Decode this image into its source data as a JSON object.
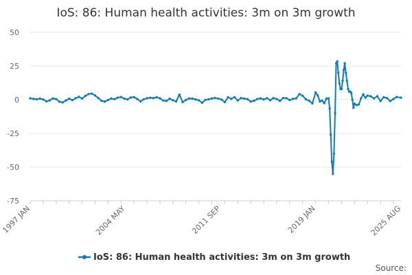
{
  "chart_data": {
    "type": "line",
    "title": "IoS: 86: Human health activities: 3m on 3m growth",
    "xlabel": "",
    "ylabel": "",
    "x_tick_labels": [
      "1997 JAN",
      "2004 MAY",
      "2011 SEP",
      "2019 JAN",
      "2025 AUG"
    ],
    "y_ticks": [
      50,
      25,
      0,
      -25,
      -50,
      -75
    ],
    "ylim": [
      -75,
      50
    ],
    "grid": true,
    "legend_position": "bottom",
    "series": [
      {
        "name": "IoS: 86: Human health activities: 3m on 3m growth",
        "color": "#0e7bb8",
        "points": [
          [
            "1997-01",
            1.0
          ],
          [
            "1997-04",
            0.6
          ],
          [
            "1997-07",
            0.3
          ],
          [
            "1997-10",
            0.8
          ],
          [
            "1998-01",
            0.2
          ],
          [
            "1998-04",
            -1.2
          ],
          [
            "1998-07",
            -0.5
          ],
          [
            "1998-10",
            0.9
          ],
          [
            "1999-01",
            0.4
          ],
          [
            "1999-04",
            -1.5
          ],
          [
            "1999-07",
            -2.0
          ],
          [
            "1999-10",
            -0.6
          ],
          [
            "2000-01",
            0.7
          ],
          [
            "2000-04",
            -0.3
          ],
          [
            "2000-07",
            1.1
          ],
          [
            "2000-10",
            2.1
          ],
          [
            "2001-01",
            0.9
          ],
          [
            "2001-04",
            2.8
          ],
          [
            "2001-07",
            4.2
          ],
          [
            "2001-10",
            4.5
          ],
          [
            "2002-01",
            3.1
          ],
          [
            "2002-04",
            1.2
          ],
          [
            "2002-07",
            -0.8
          ],
          [
            "2002-10",
            -1.4
          ],
          [
            "2003-01",
            -0.2
          ],
          [
            "2003-04",
            0.9
          ],
          [
            "2003-07",
            0.4
          ],
          [
            "2003-10",
            1.5
          ],
          [
            "2004-01",
            2.0
          ],
          [
            "2004-04",
            0.8
          ],
          [
            "2004-07",
            0.2
          ],
          [
            "2004-10",
            1.6
          ],
          [
            "2005-01",
            1.9
          ],
          [
            "2005-04",
            0.5
          ],
          [
            "2005-07",
            -1.2
          ],
          [
            "2005-10",
            0.3
          ],
          [
            "2006-01",
            1.1
          ],
          [
            "2006-04",
            1.4
          ],
          [
            "2006-07",
            1.2
          ],
          [
            "2006-10",
            1.8
          ],
          [
            "2007-01",
            1.0
          ],
          [
            "2007-04",
            -0.6
          ],
          [
            "2007-07",
            -0.9
          ],
          [
            "2007-10",
            0.7
          ],
          [
            "2008-01",
            -0.4
          ],
          [
            "2008-04",
            -1.3
          ],
          [
            "2008-07",
            3.8
          ],
          [
            "2008-10",
            -1.8
          ],
          [
            "2009-01",
            -0.2
          ],
          [
            "2009-04",
            0.9
          ],
          [
            "2009-07",
            0.8
          ],
          [
            "2009-10",
            0.2
          ],
          [
            "2010-01",
            -0.5
          ],
          [
            "2010-04",
            -2.3
          ],
          [
            "2010-07",
            -0.1
          ],
          [
            "2010-10",
            0.3
          ],
          [
            "2011-01",
            0.9
          ],
          [
            "2011-04",
            1.3
          ],
          [
            "2011-07",
            0.8
          ],
          [
            "2011-10",
            0.1
          ],
          [
            "2012-01",
            -1.8
          ],
          [
            "2012-04",
            1.8
          ],
          [
            "2012-07",
            0.6
          ],
          [
            "2012-10",
            1.9
          ],
          [
            "2013-01",
            -0.6
          ],
          [
            "2013-04",
            1.2
          ],
          [
            "2013-07",
            0.8
          ],
          [
            "2013-10",
            0.4
          ],
          [
            "2014-01",
            -1.4
          ],
          [
            "2014-04",
            -0.8
          ],
          [
            "2014-07",
            0.5
          ],
          [
            "2014-10",
            1.0
          ],
          [
            "2015-01",
            0.2
          ],
          [
            "2015-04",
            1.1
          ],
          [
            "2015-07",
            -0.3
          ],
          [
            "2015-10",
            1.2
          ],
          [
            "2016-01",
            0.5
          ],
          [
            "2016-04",
            -0.9
          ],
          [
            "2016-07",
            1.3
          ],
          [
            "2016-10",
            1.1
          ],
          [
            "2017-01",
            -0.2
          ],
          [
            "2017-04",
            0.6
          ],
          [
            "2017-07",
            1.0
          ],
          [
            "2017-10",
            4.2
          ],
          [
            "2018-01",
            2.9
          ],
          [
            "2018-04",
            0.3
          ],
          [
            "2018-07",
            -0.8
          ],
          [
            "2018-10",
            -2.8
          ],
          [
            "2019-01",
            5.4
          ],
          [
            "2019-03",
            3.1
          ],
          [
            "2019-05",
            -1.4
          ],
          [
            "2019-07",
            -0.6
          ],
          [
            "2019-09",
            -2.6
          ],
          [
            "2019-11",
            0.8
          ],
          [
            "2020-01",
            1.0
          ],
          [
            "2020-02",
            -6.5
          ],
          [
            "2020-03",
            -26.0
          ],
          [
            "2020-04",
            -46.0
          ],
          [
            "2020-05",
            -55.0
          ],
          [
            "2020-06",
            -40.0
          ],
          [
            "2020-07",
            -10.0
          ],
          [
            "2020-08",
            27.0
          ],
          [
            "2020-09",
            28.5
          ],
          [
            "2020-10",
            20.0
          ],
          [
            "2020-11",
            12.0
          ],
          [
            "2020-12",
            8.0
          ],
          [
            "2021-01",
            8.0
          ],
          [
            "2021-02",
            14.0
          ],
          [
            "2021-03",
            22.0
          ],
          [
            "2021-04",
            27.0
          ],
          [
            "2021-05",
            20.0
          ],
          [
            "2021-06",
            14.0
          ],
          [
            "2021-07",
            8.0
          ],
          [
            "2021-08",
            6.0
          ],
          [
            "2021-09",
            6.0
          ],
          [
            "2021-10",
            5.0
          ],
          [
            "2021-11",
            0.0
          ],
          [
            "2021-12",
            -6.0
          ],
          [
            "2022-01",
            -3.0
          ],
          [
            "2022-03",
            -4.0
          ],
          [
            "2022-05",
            -3.5
          ],
          [
            "2022-07",
            1.0
          ],
          [
            "2022-09",
            4.0
          ],
          [
            "2022-11",
            1.5
          ],
          [
            "2023-01",
            3.0
          ],
          [
            "2023-04",
            2.5
          ],
          [
            "2023-07",
            1.0
          ],
          [
            "2023-10",
            2.6
          ],
          [
            "2024-01",
            -1.0
          ],
          [
            "2024-04",
            1.8
          ],
          [
            "2024-07",
            1.2
          ],
          [
            "2024-10",
            -1.0
          ],
          [
            "2025-01",
            0.5
          ],
          [
            "2025-04",
            2.0
          ],
          [
            "2025-08",
            1.5
          ]
        ]
      }
    ]
  },
  "source_label": "Source:"
}
